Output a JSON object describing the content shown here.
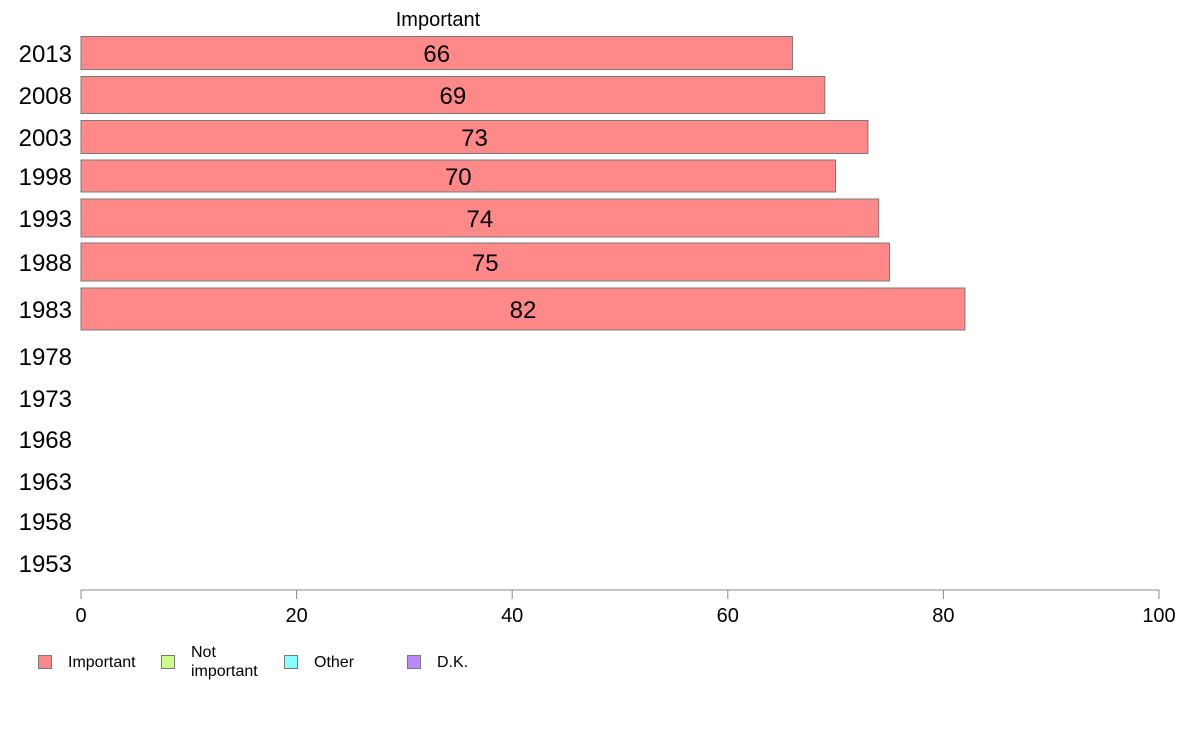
{
  "chart_data": {
    "type": "bar",
    "orientation": "horizontal",
    "title": "Important",
    "categories": [
      "2013",
      "2008",
      "2003",
      "1998",
      "1993",
      "1988",
      "1983",
      "1978",
      "1973",
      "1968",
      "1963",
      "1958",
      "1953"
    ],
    "series": [
      {
        "name": "Important",
        "color": "#ff8888",
        "values": [
          66,
          69,
          73,
          70,
          74,
          75,
          82,
          null,
          null,
          null,
          null,
          null,
          null
        ]
      }
    ],
    "data_labels": [
      "66",
      "69",
      "73",
      "70",
      "74",
      "75",
      "82",
      "",
      "",
      "",
      "",
      "",
      ""
    ],
    "xlim": [
      0,
      100
    ],
    "x_ticks": [
      "0",
      "20",
      "40",
      "60",
      "80",
      "100"
    ],
    "xlabel": "",
    "ylabel": "",
    "grid": false,
    "legend_position": "bottom-left"
  },
  "legend": {
    "items": [
      {
        "label": "Important",
        "color": "#ff8888",
        "icon": "swatch-square"
      },
      {
        "label": "Not important",
        "color": "#ccff88",
        "icon": "swatch-square"
      },
      {
        "label": "Other",
        "color": "#88ffff",
        "icon": "swatch-square"
      },
      {
        "label": "D.K.",
        "color": "#bb88ff",
        "icon": "swatch-square"
      }
    ]
  }
}
